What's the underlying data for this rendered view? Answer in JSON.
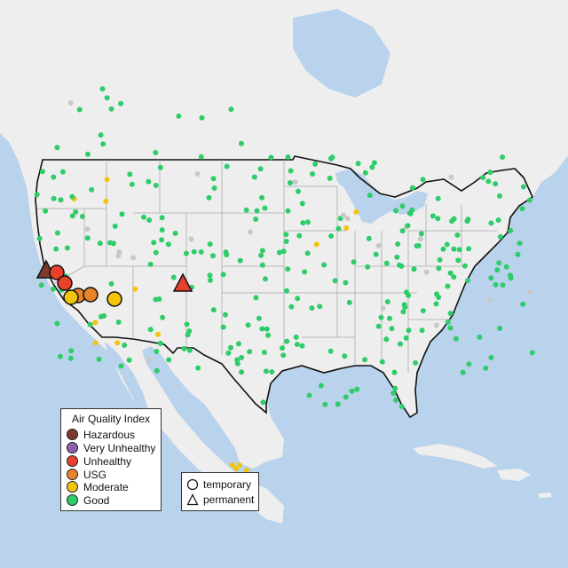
{
  "colors": {
    "water": "#b9d3ec",
    "land": "#efeeee",
    "hazardous": "#7e3a2f",
    "very_unhealthy": "#8f5fae",
    "unhealthy": "#e8402a",
    "usg": "#e8842a",
    "moderate": "#f2c40a",
    "good": "#2fcc6a"
  },
  "legend": {
    "title": "Air Quality Index",
    "items": [
      {
        "label": "Hazardous",
        "color": "#7e3a2f"
      },
      {
        "label": "Very Unhealthy",
        "color": "#8f5fae"
      },
      {
        "label": "Unhealthy",
        "color": "#e8402a"
      },
      {
        "label": "USG",
        "color": "#e8842a"
      },
      {
        "label": "Moderate",
        "color": "#f2c40a"
      },
      {
        "label": "Good",
        "color": "#2fcc6a"
      }
    ]
  },
  "monitor_types": {
    "temporary": "temporary",
    "permanent": "permanent"
  }
}
